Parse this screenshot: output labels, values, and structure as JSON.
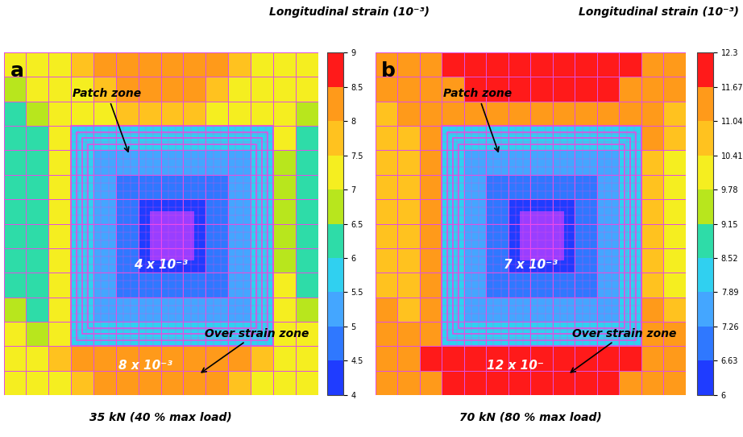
{
  "chart_data": [
    {
      "type": "heatmap",
      "label": "a",
      "title": "35 kN (40 % max load)",
      "tick_labels": false,
      "annotations": [
        "Patch zone",
        "Over strain zone",
        "4 x 10⁻³",
        "8 x 10⁻³"
      ],
      "colorbar": {
        "label": "Longitudinal strain (10⁻³)",
        "range": [
          4,
          9
        ],
        "ticks": [
          4,
          4.5,
          5,
          5.5,
          6,
          6.5,
          7,
          7.5,
          8,
          8.5,
          9
        ]
      },
      "cells": [
        [
          7.2,
          7.2,
          7.2,
          7.6,
          8.2,
          8.2,
          8.2,
          8.2,
          8.2,
          8.2,
          7.6,
          7.2,
          7.2,
          7.2
        ],
        [
          6.7,
          7.2,
          7.2,
          7.2,
          7.6,
          8.2,
          8.2,
          8.2,
          8.2,
          7.6,
          7.2,
          7.2,
          7.2,
          7.2
        ],
        [
          6.2,
          6.7,
          7.2,
          7.2,
          7.2,
          7.6,
          7.6,
          7.6,
          7.6,
          7.2,
          7.2,
          7.2,
          7.2,
          6.7
        ],
        [
          6.2,
          6.2,
          7.2,
          5.7,
          5.7,
          5.7,
          5.7,
          5.7,
          5.7,
          5.7,
          5.7,
          5.7,
          7.2,
          6.2
        ],
        [
          6.2,
          6.2,
          7.2,
          5.7,
          5.2,
          5.2,
          5.2,
          5.2,
          5.2,
          5.2,
          5.2,
          5.7,
          6.7,
          6.2
        ],
        [
          6.2,
          6.2,
          7.2,
          5.7,
          5.2,
          4.7,
          4.7,
          4.7,
          4.7,
          4.7,
          5.2,
          5.7,
          6.7,
          6.2
        ],
        [
          6.2,
          6.2,
          7.2,
          5.7,
          5.2,
          4.7,
          4.2,
          4.2,
          4.2,
          4.7,
          5.2,
          5.7,
          6.7,
          6.2
        ],
        [
          6.2,
          6.2,
          7.2,
          5.7,
          5.2,
          4.7,
          4.2,
          4.2,
          4.2,
          4.7,
          5.2,
          5.7,
          6.7,
          6.2
        ],
        [
          6.2,
          6.2,
          7.2,
          5.7,
          5.2,
          4.7,
          4.2,
          4.2,
          4.2,
          4.7,
          5.2,
          5.7,
          6.7,
          6.2
        ],
        [
          6.2,
          6.2,
          7.2,
          5.7,
          5.2,
          4.7,
          4.7,
          4.7,
          4.7,
          4.7,
          5.2,
          5.7,
          7.2,
          6.2
        ],
        [
          6.7,
          6.2,
          7.2,
          5.7,
          5.2,
          5.2,
          5.2,
          5.2,
          5.2,
          5.2,
          5.2,
          5.7,
          7.2,
          6.7
        ],
        [
          7.2,
          6.7,
          7.2,
          5.7,
          5.7,
          5.7,
          5.7,
          5.7,
          5.7,
          5.7,
          5.7,
          5.7,
          7.2,
          7.2
        ],
        [
          7.2,
          7.2,
          7.6,
          8.2,
          8.2,
          8.2,
          8.2,
          8.2,
          8.2,
          8.2,
          8.2,
          7.6,
          7.2,
          7.2
        ],
        [
          7.2,
          7.2,
          7.2,
          7.6,
          8.2,
          8.2,
          8.2,
          8.2,
          8.2,
          8.2,
          7.6,
          7.2,
          7.2,
          7.2
        ]
      ]
    },
    {
      "type": "heatmap",
      "label": "b",
      "title": "70 kN (80 % max load)",
      "tick_labels": false,
      "annotations": [
        "Patch zone",
        "Over strain zone",
        "7 x 10⁻³",
        "12 x 10⁻"
      ],
      "colorbar": {
        "label": "Longitudinal strain (10⁻³)",
        "range": [
          6,
          12.3
        ],
        "ticks": [
          6,
          6.63,
          7.26,
          7.89,
          8.52,
          9.15,
          9.78,
          10.41,
          11.04,
          11.67,
          12.3
        ]
      },
      "cells": [
        [
          11.3,
          11.3,
          11.3,
          12.0,
          12.0,
          12.0,
          12.0,
          12.0,
          12.0,
          12.0,
          12.0,
          12.0,
          11.3,
          11.3
        ],
        [
          11.3,
          11.3,
          11.3,
          11.3,
          12.0,
          12.0,
          12.0,
          12.0,
          12.0,
          12.0,
          12.0,
          11.3,
          11.3,
          11.3
        ],
        [
          10.7,
          11.3,
          11.3,
          11.3,
          11.3,
          11.3,
          11.3,
          11.3,
          11.3,
          11.3,
          11.3,
          11.3,
          11.3,
          10.7
        ],
        [
          10.7,
          10.7,
          11.3,
          8.2,
          8.2,
          8.2,
          8.2,
          8.2,
          8.2,
          8.2,
          8.2,
          8.2,
          11.3,
          10.7
        ],
        [
          10.7,
          10.7,
          11.3,
          8.2,
          7.6,
          7.6,
          7.6,
          7.6,
          7.6,
          7.6,
          7.6,
          8.2,
          10.7,
          10.1
        ],
        [
          10.7,
          10.7,
          11.3,
          8.2,
          7.6,
          6.9,
          6.9,
          6.9,
          6.9,
          6.9,
          7.6,
          8.2,
          10.7,
          10.1
        ],
        [
          10.7,
          10.7,
          11.3,
          8.2,
          7.6,
          6.9,
          6.3,
          6.3,
          6.3,
          6.9,
          7.6,
          8.2,
          10.7,
          10.1
        ],
        [
          10.7,
          10.7,
          11.3,
          8.2,
          7.6,
          6.9,
          6.3,
          6.3,
          6.3,
          6.9,
          7.6,
          8.2,
          10.7,
          10.1
        ],
        [
          10.7,
          10.7,
          11.3,
          8.2,
          7.6,
          6.9,
          6.3,
          6.3,
          6.3,
          6.9,
          7.6,
          8.2,
          10.7,
          10.1
        ],
        [
          10.7,
          10.7,
          11.3,
          8.2,
          7.6,
          6.9,
          6.9,
          6.9,
          6.9,
          6.9,
          7.6,
          8.2,
          10.7,
          10.1
        ],
        [
          11.3,
          10.7,
          11.3,
          8.2,
          7.6,
          7.6,
          7.6,
          7.6,
          7.6,
          7.6,
          7.6,
          8.2,
          11.3,
          10.7
        ],
        [
          11.3,
          11.3,
          11.3,
          8.2,
          8.2,
          8.2,
          8.2,
          8.2,
          8.2,
          8.2,
          8.2,
          8.2,
          11.3,
          11.3
        ],
        [
          11.3,
          11.3,
          12.0,
          12.0,
          12.0,
          12.0,
          12.0,
          12.0,
          12.0,
          12.0,
          12.0,
          12.0,
          11.3,
          11.3
        ],
        [
          11.3,
          11.3,
          11.3,
          12.0,
          12.0,
          12.0,
          12.0,
          12.0,
          12.0,
          12.0,
          12.0,
          11.3,
          11.3,
          11.3
        ]
      ]
    }
  ]
}
